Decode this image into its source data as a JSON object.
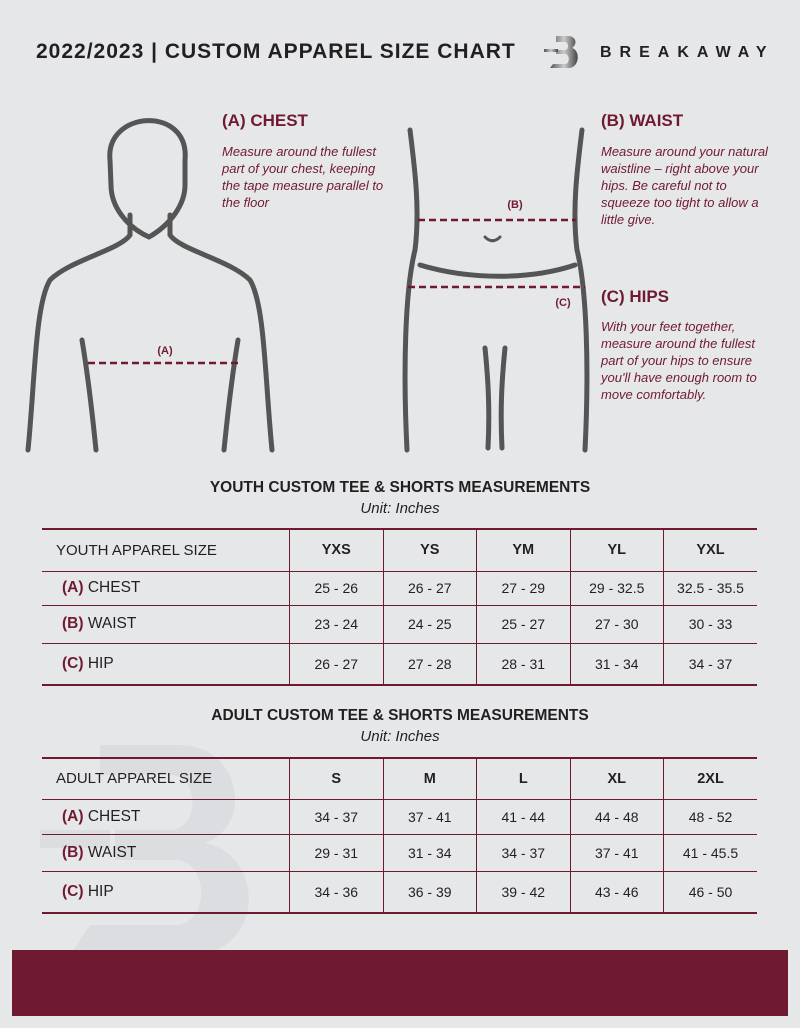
{
  "header": {
    "title": "2022/2023  |  CUSTOM APPAREL SIZE CHART",
    "brand": "BREAKAWAY",
    "logo_letter": "B"
  },
  "measures": {
    "chest": {
      "title": "(A) CHEST",
      "desc": "Measure around the fullest part of your chest, keeping the tape measure parallel to the floor",
      "marker": "(A)"
    },
    "waist": {
      "title": "(B) WAIST",
      "desc": "Measure around your natural waistline – right above your hips. Be careful not to squeeze too tight to allow a little give.",
      "marker": "(B)"
    },
    "hips": {
      "title": "(C) HIPS",
      "desc": "With your feet together, measure around the fullest part of your hips to ensure you'll have enough room to move comfortably.",
      "marker": "(C)"
    }
  },
  "colors": {
    "accent": "#701a31",
    "background": "#e6e7e9"
  },
  "youth": {
    "title": "YOUTH CUSTOM TEE & SHORTS MEASUREMENTS",
    "unit": "Unit: Inches",
    "headers": [
      "YOUTH APPAREL SIZE",
      "YXS",
      "YS",
      "YM",
      "YL",
      "YXL"
    ],
    "rows": [
      {
        "letter": "(A)",
        "label": "CHEST",
        "values": [
          "25 - 26",
          "26 - 27",
          "27 - 29",
          "29 - 32.5",
          "32.5 - 35.5"
        ]
      },
      {
        "letter": "(B)",
        "label": "WAIST",
        "values": [
          "23 - 24",
          "24 - 25",
          "25 - 27",
          "27 - 30",
          "30 - 33"
        ]
      },
      {
        "letter": "(C)",
        "label": "HIP",
        "values": [
          "26 - 27",
          "27 - 28",
          "28 - 31",
          "31 - 34",
          "34 - 37"
        ]
      }
    ]
  },
  "adult": {
    "title": "ADULT CUSTOM TEE & SHORTS MEASUREMENTS",
    "unit": "Unit: Inches",
    "headers": [
      "ADULT APPAREL SIZE",
      "S",
      "M",
      "L",
      "XL",
      "2XL"
    ],
    "rows": [
      {
        "letter": "(A)",
        "label": "CHEST",
        "values": [
          "34 - 37",
          "37 - 41",
          "41 - 44",
          "44 - 48",
          "48 - 52"
        ]
      },
      {
        "letter": "(B)",
        "label": "WAIST",
        "values": [
          "29 - 31",
          "31 - 34",
          "34 - 37",
          "37 - 41",
          "41 - 45.5"
        ]
      },
      {
        "letter": "(C)",
        "label": "HIP",
        "values": [
          "34 - 36",
          "36 - 39",
          "39 - 42",
          "43 - 46",
          "46 - 50"
        ]
      }
    ]
  }
}
